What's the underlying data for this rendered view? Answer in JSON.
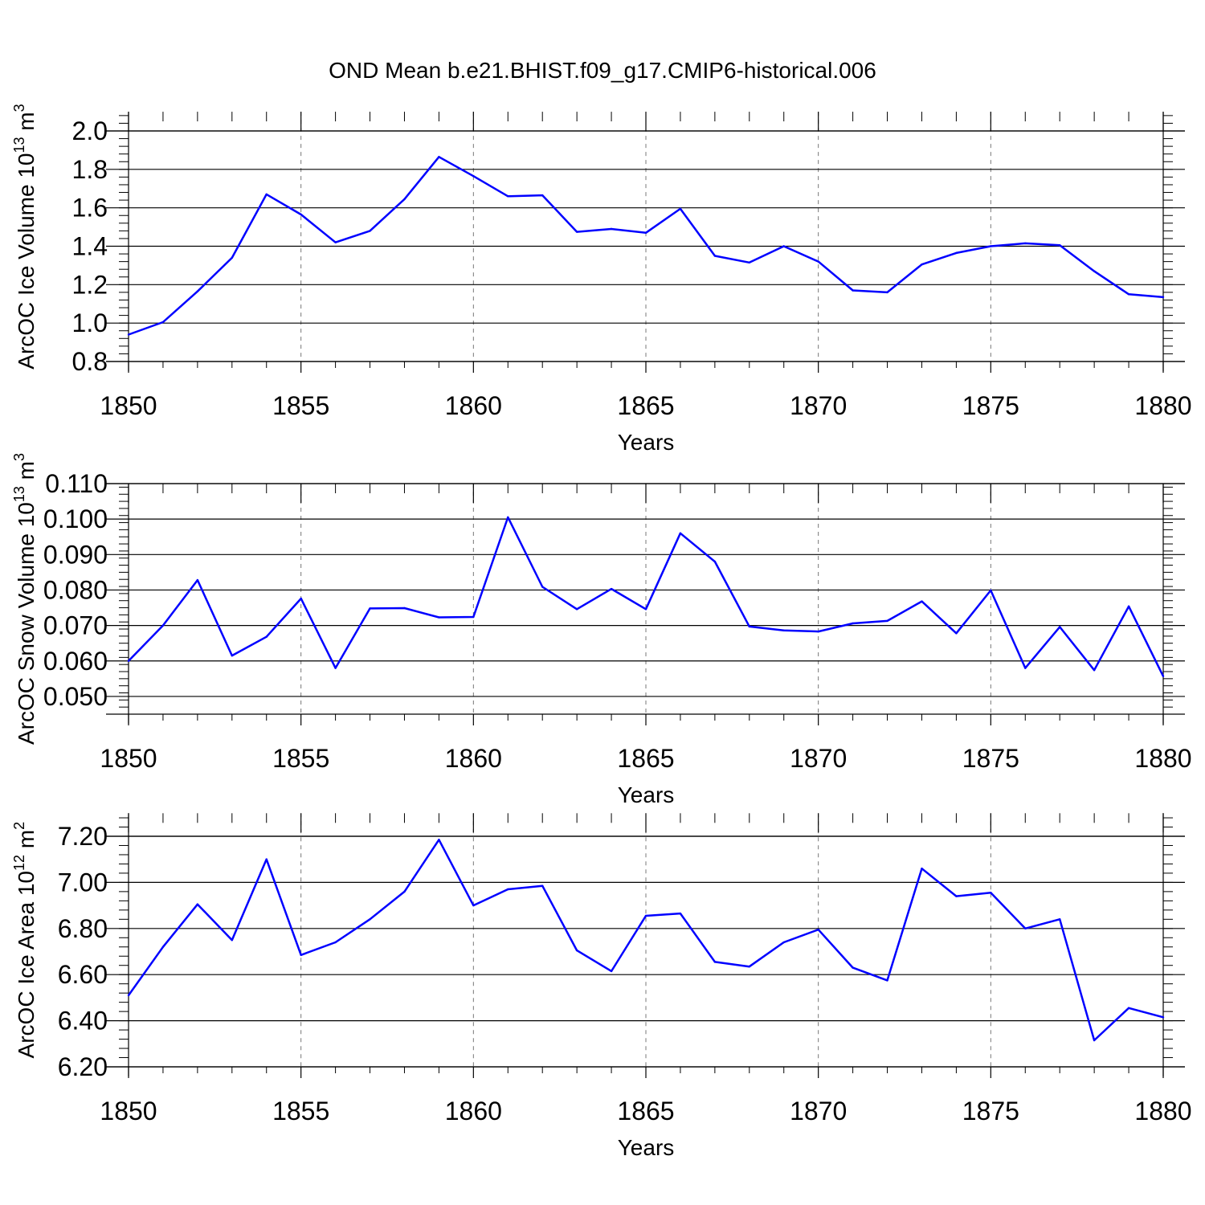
{
  "figure_title": "OND Mean b.e21.BHIST.f09_g17.CMIP6-historical.006",
  "colors": {
    "line": "#0000ff",
    "axis": "#000000",
    "grid": "#777777"
  },
  "chart_data": [
    {
      "type": "line",
      "title": "",
      "xlabel": "Years",
      "ylabel": "ArcOC Ice Volume 10",
      "ylabel_exp": "13",
      "ylabel_unit": " m",
      "ylabel_unit_exp": "3",
      "xlim": [
        1850,
        1880
      ],
      "ylim": [
        0.8,
        2.1
      ],
      "xticks": [
        1850,
        1855,
        1860,
        1865,
        1870,
        1875,
        1880
      ],
      "xtick_labels": [
        "1850",
        "1855",
        "1860",
        "1865",
        "1870",
        "1875",
        "1880"
      ],
      "yticks": [
        0.8,
        1.0,
        1.2,
        1.4,
        1.6,
        1.8,
        2.0
      ],
      "ytick_labels": [
        "0.8",
        "1.0",
        "1.2",
        "1.4",
        "1.6",
        "1.8",
        "2.0"
      ],
      "grid": "vertical dashed at major x ticks",
      "x": [
        1850,
        1851,
        1852,
        1853,
        1854,
        1855,
        1856,
        1857,
        1858,
        1859,
        1860,
        1861,
        1862,
        1863,
        1864,
        1865,
        1866,
        1867,
        1868,
        1869,
        1870,
        1871,
        1872,
        1873,
        1874,
        1875,
        1876,
        1877,
        1878,
        1879,
        1880
      ],
      "series": [
        {
          "name": "ArcOC Ice Volume",
          "values": [
            0.94,
            1.005,
            1.165,
            1.34,
            1.67,
            1.565,
            1.42,
            1.48,
            1.645,
            1.865,
            1.765,
            1.66,
            1.665,
            1.475,
            1.49,
            1.47,
            1.595,
            1.35,
            1.315,
            1.4,
            1.32,
            1.17,
            1.16,
            1.305,
            1.365,
            1.4,
            1.415,
            1.405,
            1.27,
            1.15,
            1.135
          ]
        }
      ]
    },
    {
      "type": "line",
      "title": "",
      "xlabel": "Years",
      "ylabel": "ArcOC Snow Volume 10",
      "ylabel_exp": "13",
      "ylabel_unit": " m",
      "ylabel_unit_exp": "3",
      "xlim": [
        1850,
        1880
      ],
      "ylim": [
        0.045,
        0.11
      ],
      "xticks": [
        1850,
        1855,
        1860,
        1865,
        1870,
        1875,
        1880
      ],
      "xtick_labels": [
        "1850",
        "1855",
        "1860",
        "1865",
        "1870",
        "1875",
        "1880"
      ],
      "yticks": [
        0.05,
        0.06,
        0.07,
        0.08,
        0.09,
        0.1,
        0.11
      ],
      "ytick_labels": [
        "0.050",
        "0.060",
        "0.070",
        "0.080",
        "0.090",
        "0.100",
        "0.110"
      ],
      "grid": "vertical dashed at major x ticks",
      "x": [
        1850,
        1851,
        1852,
        1853,
        1854,
        1855,
        1856,
        1857,
        1858,
        1859,
        1860,
        1861,
        1862,
        1863,
        1864,
        1865,
        1866,
        1867,
        1868,
        1869,
        1870,
        1871,
        1872,
        1873,
        1874,
        1875,
        1876,
        1877,
        1878,
        1879,
        1880
      ],
      "series": [
        {
          "name": "ArcOC Snow Volume",
          "values": [
            0.06,
            0.07,
            0.0828,
            0.0615,
            0.0668,
            0.0776,
            0.058,
            0.0748,
            0.0749,
            0.0723,
            0.0724,
            0.1005,
            0.0809,
            0.0746,
            0.0803,
            0.0746,
            0.096,
            0.088,
            0.0697,
            0.0686,
            0.0683,
            0.0706,
            0.0713,
            0.0768,
            0.0678,
            0.0799,
            0.058,
            0.0696,
            0.0574,
            0.0754,
            0.0557
          ]
        }
      ]
    },
    {
      "type": "line",
      "title": "",
      "xlabel": "Years",
      "ylabel": "ArcOC Ice Area 10",
      "ylabel_exp": "12",
      "ylabel_unit": " m",
      "ylabel_unit_exp": "2",
      "xlim": [
        1850,
        1880
      ],
      "ylim": [
        6.2,
        7.3
      ],
      "xticks": [
        1850,
        1855,
        1860,
        1865,
        1870,
        1875,
        1880
      ],
      "xtick_labels": [
        "1850",
        "1855",
        "1860",
        "1865",
        "1870",
        "1875",
        "1880"
      ],
      "yticks": [
        6.2,
        6.4,
        6.6,
        6.8,
        7.0,
        7.2
      ],
      "ytick_labels": [
        "6.20",
        "6.40",
        "6.60",
        "6.80",
        "7.00",
        "7.20"
      ],
      "grid": "vertical dashed at major x ticks",
      "x": [
        1850,
        1851,
        1852,
        1853,
        1854,
        1855,
        1856,
        1857,
        1858,
        1859,
        1860,
        1861,
        1862,
        1863,
        1864,
        1865,
        1866,
        1867,
        1868,
        1869,
        1870,
        1871,
        1872,
        1873,
        1874,
        1875,
        1876,
        1877,
        1878,
        1879,
        1880
      ],
      "series": [
        {
          "name": "ArcOC Ice Area",
          "values": [
            6.51,
            6.72,
            6.905,
            6.75,
            7.1,
            6.685,
            6.74,
            6.84,
            6.96,
            7.185,
            6.9,
            6.97,
            6.985,
            6.705,
            6.615,
            6.855,
            6.865,
            6.655,
            6.635,
            6.74,
            6.795,
            6.63,
            6.575,
            7.06,
            6.94,
            6.955,
            6.8,
            6.84,
            6.315,
            6.455,
            6.415
          ]
        }
      ]
    }
  ]
}
